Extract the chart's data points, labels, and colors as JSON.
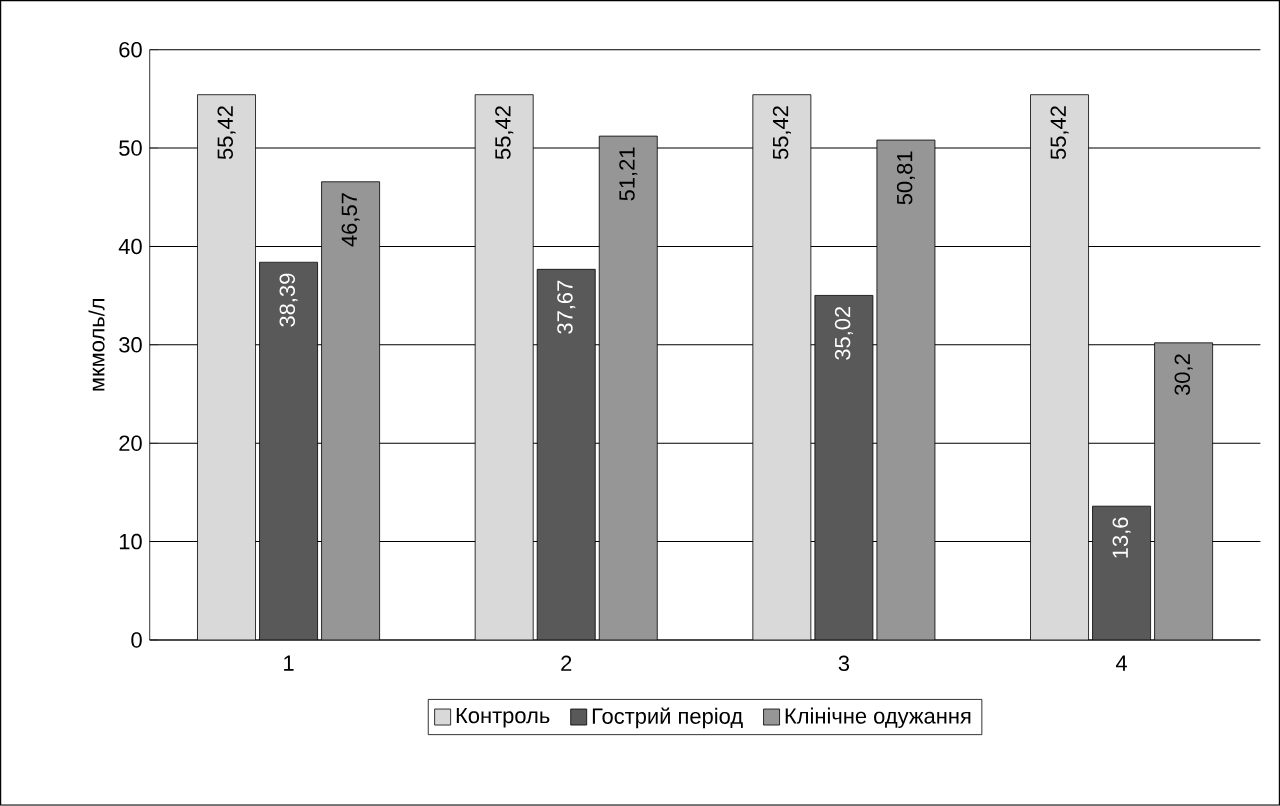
{
  "chart_data": {
    "type": "bar",
    "ylabel": "мкмоль/л",
    "categories": [
      "1",
      "2",
      "3",
      "4"
    ],
    "series": [
      {
        "name": "Контроль",
        "color": "#d9d9d9",
        "values": [
          55.42,
          55.42,
          55.42,
          55.42
        ],
        "value_labels": [
          "55,42",
          "55,42",
          "55,42",
          "55,42"
        ]
      },
      {
        "name": "Гострий період",
        "color": "#595959",
        "values": [
          38.39,
          37.67,
          35.02,
          13.6
        ],
        "value_labels": [
          "38,39",
          "37,67",
          "35,02",
          "13,6"
        ]
      },
      {
        "name": "Клінічне одужання",
        "color": "#969696",
        "values": [
          46.57,
          51.21,
          50.81,
          30.2
        ],
        "value_labels": [
          "46,57",
          "51,21",
          "50,81",
          "30,2"
        ]
      }
    ],
    "ylim": [
      0,
      60
    ],
    "yticks": [
      0,
      10,
      20,
      30,
      40,
      50,
      60
    ],
    "grid": "y",
    "legend": "bottom"
  }
}
